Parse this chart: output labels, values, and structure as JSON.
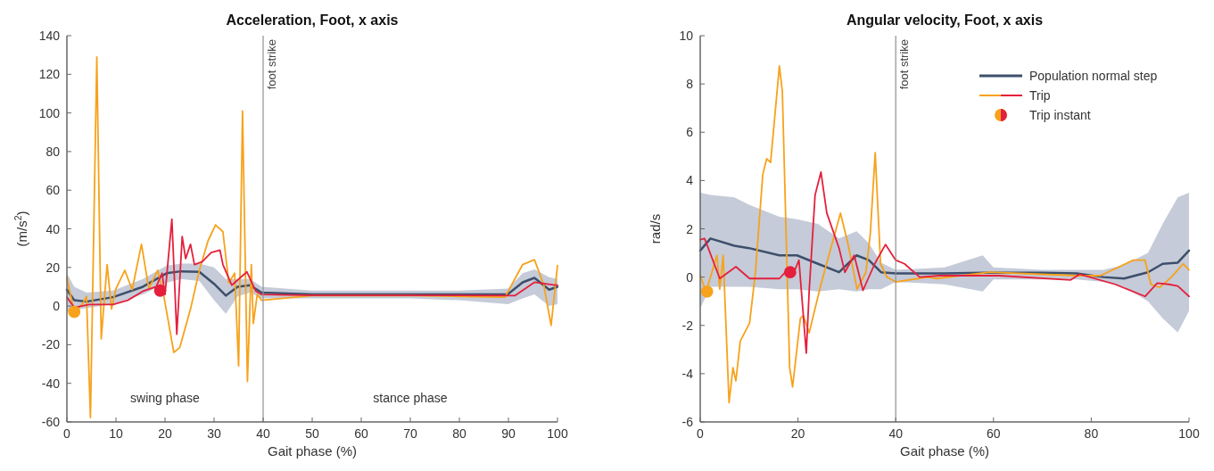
{
  "chart_data": [
    {
      "type": "line",
      "title": "Acceleration, Foot, x axis",
      "xlabel": "Gait phase (%)",
      "ylabel": "(m/s$^{2}$)",
      "xlim": [
        0,
        100
      ],
      "xticks": [
        0,
        10,
        20,
        30,
        40,
        50,
        60,
        70,
        80,
        90,
        100
      ],
      "ylim": [
        -60,
        140
      ],
      "yticks": [
        -60,
        -40,
        -20,
        0,
        20,
        40,
        60,
        80,
        100,
        120,
        140
      ],
      "grid": false,
      "legend": false,
      "ref_lines": [
        {
          "axis": "x",
          "value": 40,
          "label": "foot strike",
          "color": "#909090"
        }
      ],
      "annotations": [
        "swing phase",
        "stance phase"
      ],
      "series": [
        {
          "color": "#3d4f6b",
          "x": [
            0,
            1.5,
            4,
            9.4,
            15.5,
            20.3,
            23.3,
            27,
            30,
            32.4,
            34.8,
            37.3,
            39.7,
            50,
            60,
            70,
            80,
            89.9,
            92.9,
            95.3,
            98.3,
            100
          ],
          "values": [
            8.5,
            3,
            2.3,
            4.6,
            10,
            17,
            18,
            17.7,
            11.5,
            5.4,
            10,
            10.8,
            7,
            6,
            6,
            6,
            6,
            6.2,
            12.3,
            14.6,
            8.5,
            10
          ],
          "lower": [
            -3,
            -2,
            -1,
            1,
            6,
            12,
            14,
            13,
            3,
            -4,
            5,
            7,
            4,
            4,
            4,
            4,
            3,
            1,
            4,
            6,
            0,
            1
          ],
          "upper": [
            17,
            10,
            7,
            8,
            14,
            21,
            22,
            22,
            20,
            14,
            14,
            14,
            10,
            8,
            8,
            8,
            8,
            9,
            17,
            19,
            15,
            14
          ]
        },
        {
          "color": "#f7a21b",
          "x": [
            0,
            1.5,
            3.3,
            4,
            4.8,
            6.1,
            7,
            8.2,
            9.1,
            10,
            11.8,
            13.3,
            15.2,
            16.7,
            18.5,
            19.7,
            21.8,
            23,
            25.2,
            27,
            28.8,
            30.3,
            31.8,
            33,
            34.2,
            35,
            35.8,
            36.8,
            37.6,
            38,
            38.8,
            39.7,
            50,
            60,
            70,
            80,
            89.3,
            92.9,
            95.3,
            97.2,
            98.7,
            100
          ],
          "values": [
            14.6,
            -3,
            1.5,
            5,
            -57.7,
            129,
            -17,
            21.5,
            -1.5,
            9,
            18.5,
            8.5,
            32,
            9,
            18.5,
            6,
            -24,
            -21.5,
            -1.5,
            18.5,
            34,
            42,
            38.5,
            12,
            17,
            -31,
            101,
            -39,
            21.5,
            -9,
            6,
            3,
            5.4,
            5.4,
            5.4,
            5,
            4.6,
            21.5,
            24,
            11,
            -10,
            21
          ]
        },
        {
          "color": "#e4203c",
          "x": [
            0,
            1.5,
            4.5,
            9.4,
            12.4,
            15.5,
            18.2,
            19.4,
            20,
            21.4,
            22.4,
            23.5,
            24.2,
            25.2,
            26,
            27.6,
            29.4,
            31.2,
            31.8,
            33.6,
            36.7,
            38.5,
            39.7,
            50,
            60,
            70,
            80,
            91.3,
            95.3,
            99.5,
            100
          ],
          "values": [
            4.6,
            -0.8,
            0.8,
            0.8,
            3,
            7.7,
            10,
            17,
            6,
            45,
            -14.6,
            36,
            24.6,
            32,
            21.5,
            23,
            27.7,
            29,
            21.5,
            10.8,
            17.7,
            7.7,
            6,
            5.5,
            5.5,
            5.5,
            5.5,
            5.4,
            12.3,
            10.8,
            10.8
          ]
        },
        {
          "type": "scatter",
          "marker": "circle",
          "x": [
            1.5,
            19
          ],
          "values": [
            -3,
            8
          ],
          "colors": [
            "#f7a21b",
            "#e4203c"
          ]
        }
      ]
    },
    {
      "type": "line",
      "title": "Angular velocity, Foot, x axis",
      "xlabel": "Gait phase (%)",
      "ylabel": "rad/s",
      "xlim": [
        0,
        100
      ],
      "xticks": [
        0,
        20,
        40,
        60,
        80,
        100
      ],
      "ylim": [
        -6,
        10
      ],
      "yticks": [
        -6,
        -4,
        -2,
        0,
        2,
        4,
        6,
        8,
        10
      ],
      "grid": false,
      "legend": "top right",
      "ref_lines": [
        {
          "axis": "x",
          "value": 40,
          "label": "foot strike",
          "color": "#909090"
        }
      ],
      "series": [
        {
          "name": "Population normal step",
          "color": "#3d4f6b",
          "x": [
            0,
            2.1,
            7,
            10,
            16.2,
            19.8,
            24.1,
            28.4,
            32,
            34.5,
            37,
            40,
            50,
            57.8,
            60,
            70,
            77,
            82.5,
            86.7,
            91.6,
            94.6,
            97.7,
            100
          ],
          "values": [
            1.1,
            1.6,
            1.3,
            1.2,
            0.9,
            0.9,
            0.55,
            0.2,
            0.9,
            0.7,
            0.2,
            0.15,
            0.15,
            0.18,
            0.18,
            0.18,
            0.15,
            0,
            -0.06,
            0.2,
            0.55,
            0.6,
            1.1
          ],
          "lower": [
            -1.3,
            -0.4,
            -0.4,
            -0.4,
            -0.5,
            -0.5,
            -0.6,
            -0.5,
            -0.6,
            -0.5,
            -0.5,
            -0.2,
            -0.3,
            -0.6,
            -0.1,
            -0.1,
            -0.1,
            -0.2,
            -0.4,
            -1,
            -1.7,
            -2.3,
            -1.4
          ],
          "upper": [
            3.5,
            3.4,
            3.3,
            3,
            2.5,
            2.4,
            2.2,
            1.6,
            1.9,
            1.4,
            0.6,
            0.3,
            0.4,
            0.9,
            0.4,
            0.3,
            0.3,
            0.3,
            0.5,
            1,
            2.2,
            3.3,
            3.5
          ]
        },
        {
          "name": "Trip",
          "color": "#f7a21b",
          "x": [
            0,
            1.2,
            2.4,
            3.4,
            4,
            4.7,
            5.9,
            6.7,
            7.3,
            8.2,
            10.1,
            11.3,
            12.8,
            13.6,
            14.4,
            16.2,
            16.8,
            18.3,
            18.9,
            20.5,
            21.1,
            22.3,
            24.7,
            27.2,
            28.7,
            30.2,
            32.1,
            33.9,
            34.8,
            35.8,
            36.9,
            38.2,
            40,
            46.6,
            48.4,
            59.2,
            77,
            81.9,
            88.6,
            91,
            92.2,
            94,
            96.4,
            98.8,
            100
          ],
          "values": [
            0.06,
            -0.6,
            0.2,
            0.9,
            -0.5,
            0.9,
            -5.2,
            -3.75,
            -4.3,
            -2.65,
            -1.9,
            0.2,
            4.25,
            4.9,
            4.75,
            8.75,
            7.7,
            -3.75,
            -4.55,
            -1.7,
            -1.6,
            -2.3,
            -0.3,
            1.55,
            2.65,
            1.4,
            -0.5,
            0.2,
            1.8,
            5.15,
            0.55,
            0,
            -0.2,
            0,
            -0.06,
            0.2,
            0.06,
            0.06,
            0.7,
            0.7,
            -0.3,
            -0.43,
            0,
            0.55,
            0.3
          ]
        },
        {
          "color": "#e4203c",
          "x": [
            0,
            0.9,
            4,
            7.3,
            10.1,
            16.2,
            17.4,
            18.9,
            20.2,
            21.7,
            22.3,
            23.5,
            24.7,
            25.9,
            28.4,
            29.6,
            31.5,
            33.3,
            35.7,
            37.9,
            40,
            41.8,
            44.9,
            49,
            61.2,
            75.8,
            77.6,
            84.9,
            91,
            93.5,
            95.9,
            97.7,
            100
          ],
          "values": [
            1.55,
            1.6,
            -0.06,
            0.43,
            -0.06,
            -0.06,
            0.2,
            0.06,
            0.7,
            -3.15,
            -0.55,
            3.4,
            4.35,
            2.65,
            1.2,
            0.2,
            0.9,
            -0.55,
            0.55,
            1.35,
            0.7,
            0.55,
            0,
            0.06,
            0.06,
            -0.12,
            0.12,
            -0.3,
            -0.8,
            -0.25,
            -0.3,
            -0.37,
            -0.8
          ]
        },
        {
          "type": "scatter",
          "name": "Trip instant",
          "marker": "circle",
          "x": [
            1.4,
            18.4
          ],
          "values": [
            -0.6,
            0.2
          ],
          "colors": [
            "#f7a21b",
            "#e4203c"
          ]
        }
      ]
    }
  ]
}
